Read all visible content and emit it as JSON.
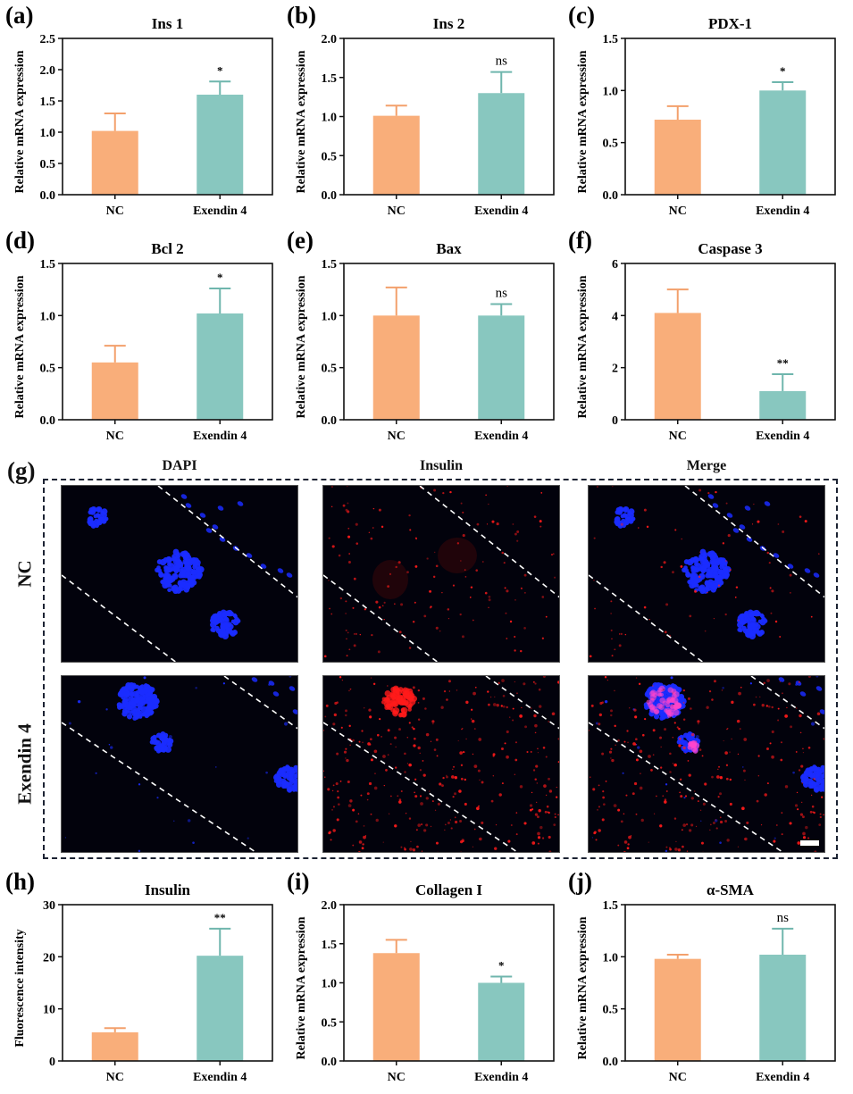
{
  "colors": {
    "nc": "#f9ae7a",
    "exendin": "#88c7bf",
    "nc_err": "#f3a06c",
    "exendin_err": "#6fb6ad",
    "axis": "#111111",
    "dapi": "#1a2cff",
    "insulin": "#ff1a1a"
  },
  "chart_data": [
    {
      "id": "a",
      "letter": "(a)",
      "type": "bar",
      "title": "Ins 1",
      "ylabel": "Relative mRNA expression",
      "categories": [
        "NC",
        "Exendin 4"
      ],
      "values": [
        1.02,
        1.6
      ],
      "errors": [
        0.28,
        0.21
      ],
      "significance": [
        "",
        "*"
      ],
      "ylim": [
        0,
        2.5
      ],
      "yticks": [
        "0.0",
        "0.5",
        "1.0",
        "1.5",
        "2.0",
        "2.5"
      ],
      "ytick_values": [
        0,
        0.5,
        1.0,
        1.5,
        2.0,
        2.5
      ]
    },
    {
      "id": "b",
      "letter": "(b)",
      "type": "bar",
      "title": "Ins 2",
      "ylabel": "Relative mRNA expression",
      "categories": [
        "NC",
        "Exendin 4"
      ],
      "values": [
        1.01,
        1.3
      ],
      "errors": [
        0.13,
        0.27
      ],
      "significance": [
        "",
        "ns"
      ],
      "ylim": [
        0,
        2.0
      ],
      "yticks": [
        "0.0",
        "0.5",
        "1.0",
        "1.5",
        "2.0"
      ],
      "ytick_values": [
        0,
        0.5,
        1.0,
        1.5,
        2.0
      ]
    },
    {
      "id": "c",
      "letter": "(c)",
      "type": "bar",
      "title": "PDX-1",
      "ylabel": "Relative mRNA expression",
      "categories": [
        "NC",
        "Exendin 4"
      ],
      "values": [
        0.72,
        1.0
      ],
      "errors": [
        0.13,
        0.08
      ],
      "significance": [
        "",
        "*"
      ],
      "ylim": [
        0,
        1.5
      ],
      "yticks": [
        "0.0",
        "0.5",
        "1.0",
        "1.5"
      ],
      "ytick_values": [
        0,
        0.5,
        1.0,
        1.5
      ]
    },
    {
      "id": "d",
      "letter": "(d)",
      "type": "bar",
      "title": "Bcl 2",
      "ylabel": "Relative mRNA expression",
      "categories": [
        "NC",
        "Exendin 4"
      ],
      "values": [
        0.55,
        1.02
      ],
      "errors": [
        0.16,
        0.24
      ],
      "significance": [
        "",
        "*"
      ],
      "ylim": [
        0,
        1.5
      ],
      "yticks": [
        "0.0",
        "0.5",
        "1.0",
        "1.5"
      ],
      "ytick_values": [
        0,
        0.5,
        1.0,
        1.5
      ]
    },
    {
      "id": "e",
      "letter": "(e)",
      "type": "bar",
      "title": "Bax",
      "ylabel": "Relative mRNA expression",
      "categories": [
        "NC",
        "Exendin 4"
      ],
      "values": [
        1.0,
        1.0
      ],
      "errors": [
        0.27,
        0.11
      ],
      "significance": [
        "",
        "ns"
      ],
      "ylim": [
        0,
        1.5
      ],
      "yticks": [
        "0.0",
        "0.5",
        "1.0",
        "1.5"
      ],
      "ytick_values": [
        0,
        0.5,
        1.0,
        1.5
      ]
    },
    {
      "id": "f",
      "letter": "(f)",
      "type": "bar",
      "title": "Caspase 3",
      "ylabel": "Relative mRNA expression",
      "categories": [
        "NC",
        "Exendin 4"
      ],
      "values": [
        4.1,
        1.1
      ],
      "errors": [
        0.9,
        0.65
      ],
      "significance": [
        "",
        "**"
      ],
      "ylim": [
        0,
        6
      ],
      "yticks": [
        "0",
        "2",
        "4",
        "6"
      ],
      "ytick_values": [
        0,
        2,
        4,
        6
      ]
    },
    {
      "id": "h",
      "letter": "(h)",
      "type": "bar",
      "title": "Insulin",
      "ylabel": "Fluorescence intensity",
      "categories": [
        "NC",
        "Exendin 4"
      ],
      "values": [
        5.5,
        20.2
      ],
      "errors": [
        0.8,
        5.2
      ],
      "significance": [
        "",
        "**"
      ],
      "ylim": [
        0,
        30
      ],
      "yticks": [
        "0",
        "10",
        "20",
        "30"
      ],
      "ytick_values": [
        0,
        10,
        20,
        30
      ]
    },
    {
      "id": "i",
      "letter": "(i)",
      "type": "bar",
      "title": "Collagen I",
      "ylabel": "Relative mRNA expression",
      "categories": [
        "NC",
        "Exendin 4"
      ],
      "values": [
        1.38,
        1.0
      ],
      "errors": [
        0.17,
        0.08
      ],
      "significance": [
        "",
        "*"
      ],
      "ylim": [
        0,
        2.0
      ],
      "yticks": [
        "0.0",
        "0.5",
        "1.0",
        "1.5",
        "2.0"
      ],
      "ytick_values": [
        0,
        0.5,
        1.0,
        1.5,
        2.0
      ]
    },
    {
      "id": "j",
      "letter": "(j)",
      "type": "bar",
      "title": "α-SMA",
      "ylabel": "Relative mRNA expression",
      "categories": [
        "NC",
        "Exendin 4"
      ],
      "values": [
        0.98,
        1.02
      ],
      "errors": [
        0.04,
        0.25
      ],
      "significance": [
        "",
        "ns"
      ],
      "ylim": [
        0,
        1.5
      ],
      "yticks": [
        "0.0",
        "0.5",
        "1.0",
        "1.5"
      ],
      "ytick_values": [
        0,
        0.5,
        1.0,
        1.5
      ]
    }
  ],
  "microscopy": {
    "letter": "(g)",
    "columns": [
      "DAPI",
      "Insulin",
      "Merge"
    ],
    "rows": [
      "NC",
      "Exendin 4"
    ]
  }
}
